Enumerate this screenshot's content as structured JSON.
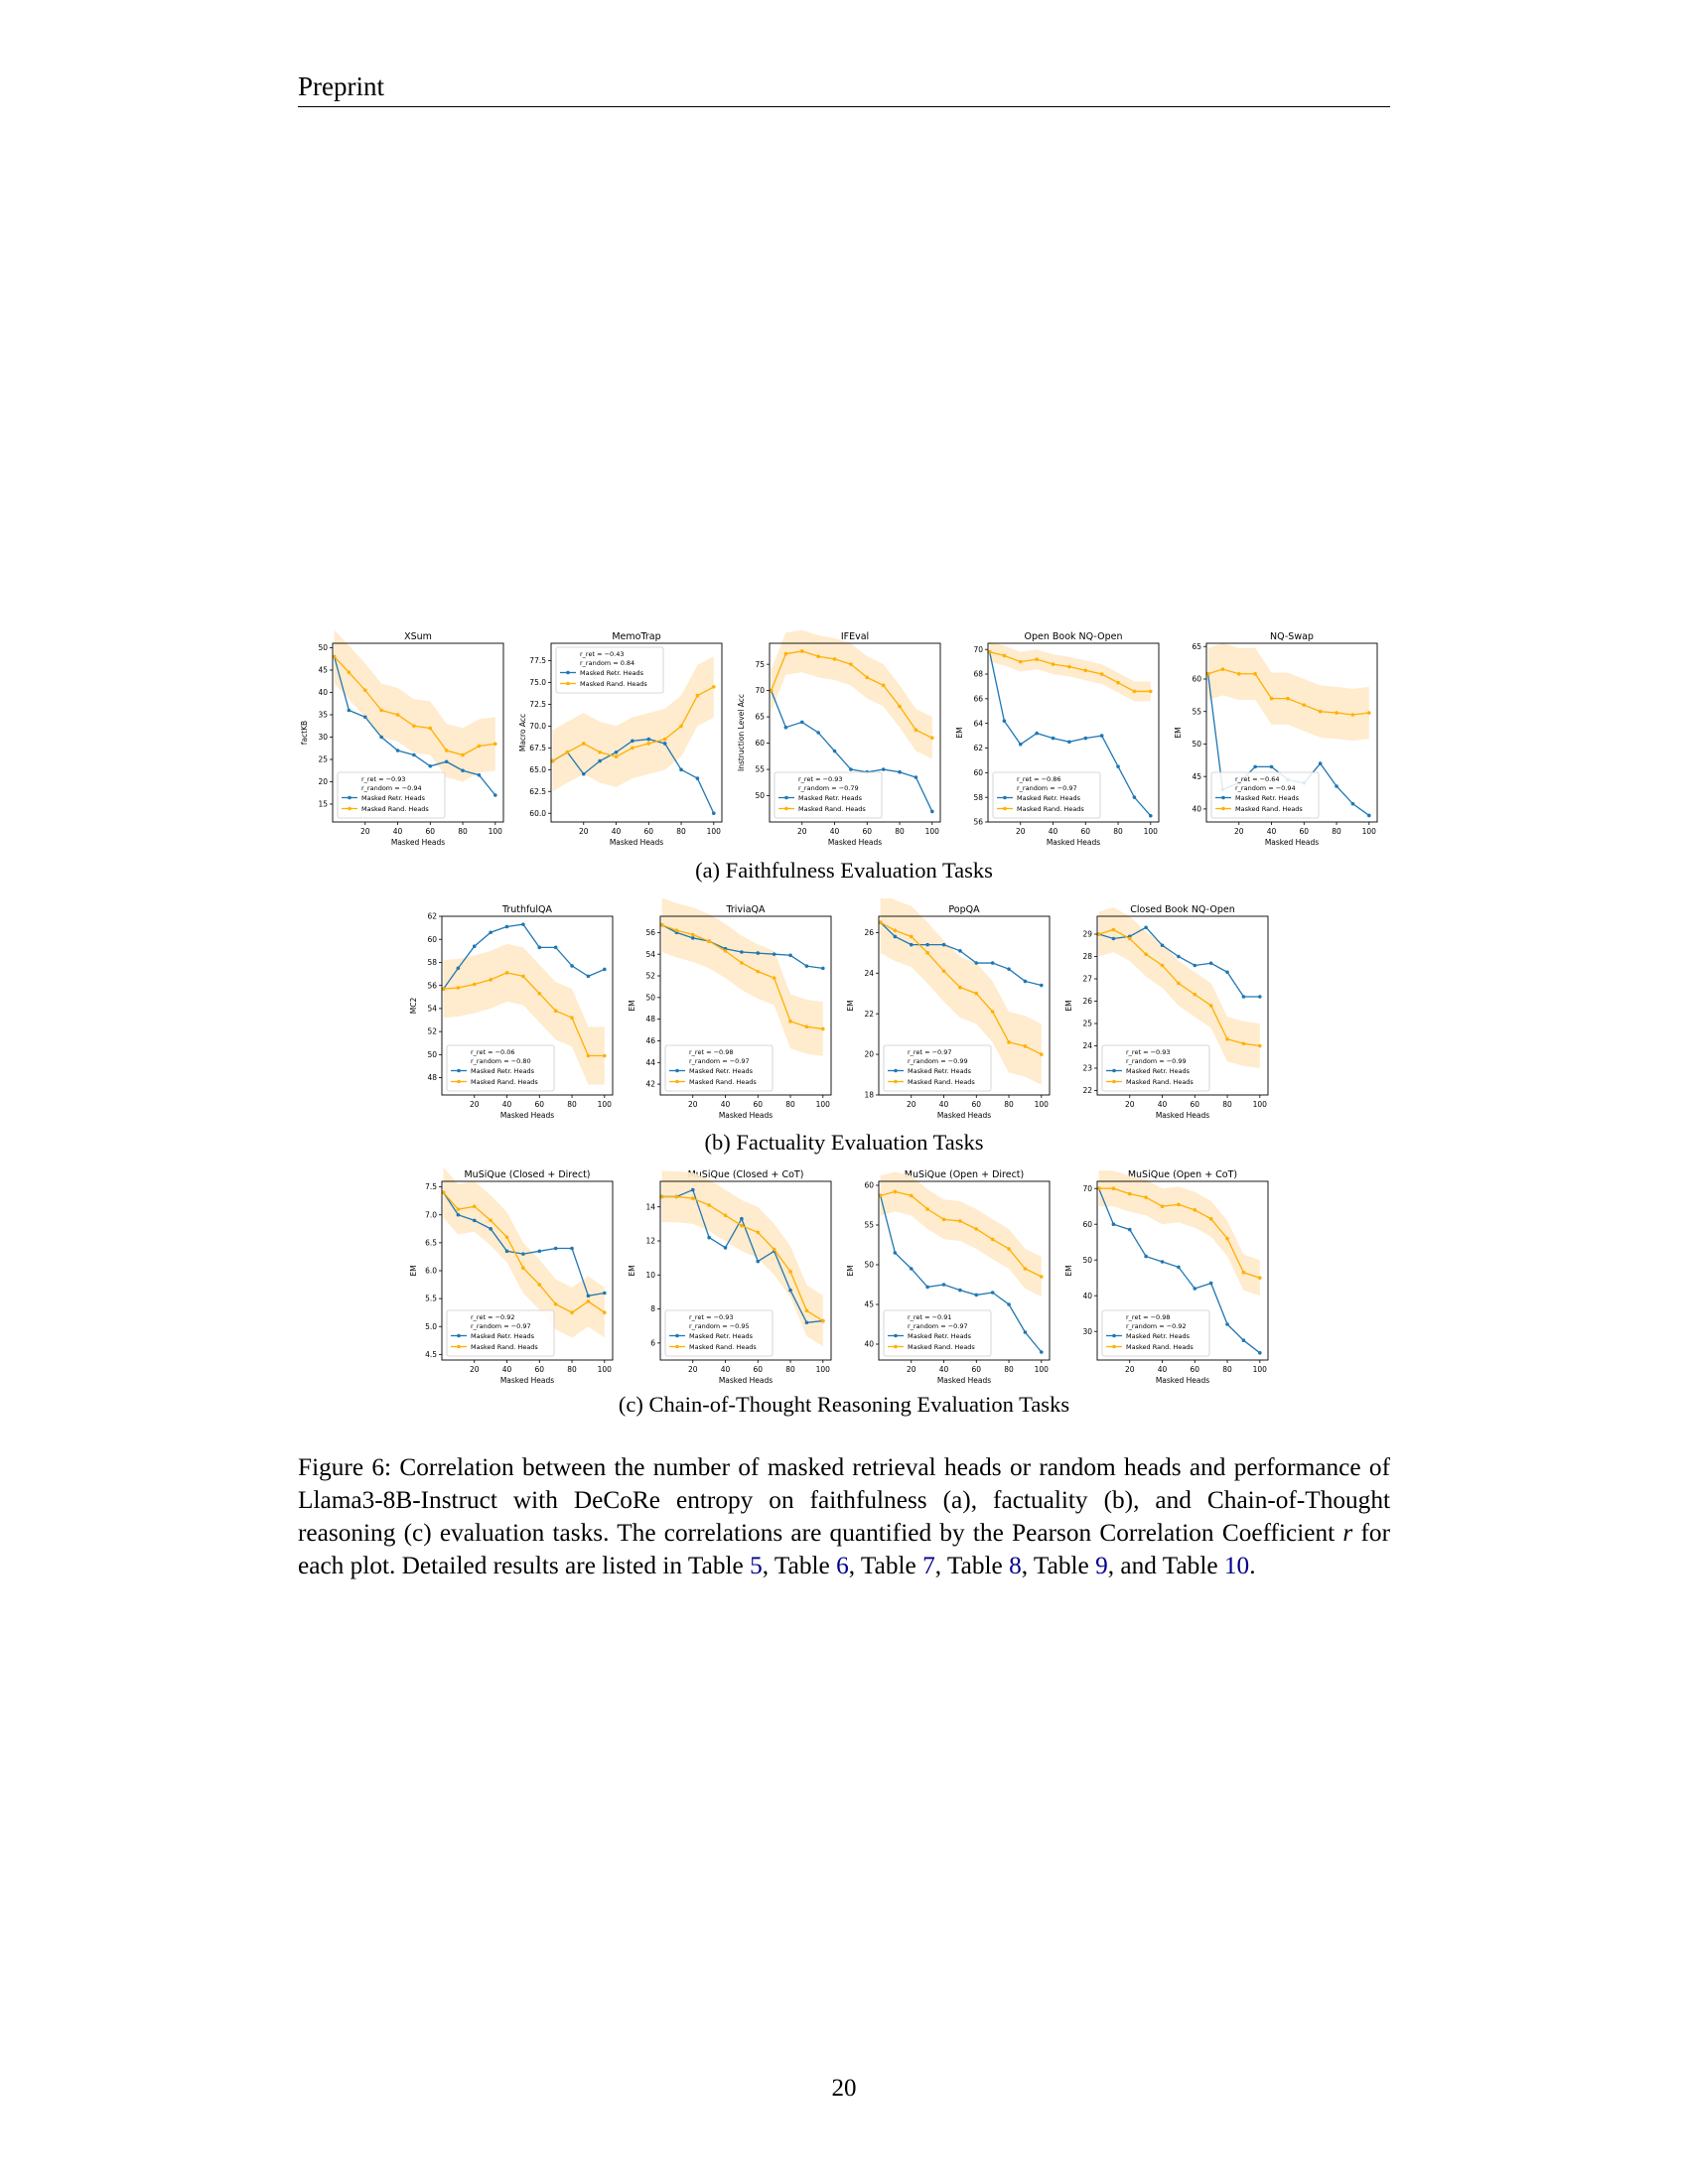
{
  "header": {
    "title": "Preprint"
  },
  "page_number": "20",
  "legend_labels": {
    "retr": "Masked Retr. Heads",
    "rand": "Masked Rand. Heads"
  },
  "colors": {
    "retr": "#1f77b4",
    "rand": "#ffb000",
    "band": "#ffe9c8"
  },
  "subcaptions": {
    "a": "(a) Faithfulness Evaluation Tasks",
    "b": "(b) Factuality Evaluation Tasks",
    "c": "(c) Chain-of-Thought Reasoning Evaluation Tasks"
  },
  "caption": {
    "part1": "Figure 6: Correlation between the number of masked retrieval heads or random heads and performance of Llama3-8B-Instruct with DeCoRe entropy on faithfulness (a), factuality (b), and Chain-of-Thought reasoning (c) evaluation tasks. The correlations are quantified by the Pearson Correlation Coefficient ",
    "var": "r",
    "part2": " for each plot. Detailed results are listed in Table ",
    "ref5": "5",
    "sep1": ", Table ",
    "ref6": "6",
    "sep2": ", Table ",
    "ref7": "7",
    "sep3": ", Table ",
    "ref8": "8",
    "sep4": ", Table ",
    "ref9": "9",
    "sep5": ", and Table ",
    "ref10": "10",
    "end": "."
  },
  "chart_data": [
    {
      "type": "line",
      "title": "XSum",
      "xlabel": "Masked Heads",
      "ylabel": "factKB",
      "xlim": [
        0,
        105
      ],
      "ylim": [
        11,
        51
      ],
      "xticks": [
        20,
        40,
        60,
        80,
        100
      ],
      "yticks": [
        15,
        20,
        25,
        30,
        35,
        40,
        45,
        50
      ],
      "x": [
        1,
        10,
        20,
        30,
        40,
        50,
        60,
        70,
        80,
        90,
        100
      ],
      "series": [
        {
          "name": "Masked Retr. Heads",
          "values": [
            48,
            36,
            34.5,
            30,
            27,
            26,
            23.5,
            24.5,
            22.5,
            21.5,
            17
          ]
        },
        {
          "name": "Masked Rand. Heads",
          "values": [
            48,
            44.5,
            40.5,
            36,
            35,
            32.5,
            32,
            27,
            26,
            28,
            28.5
          ],
          "band": 6
        }
      ],
      "corr": [
        "r_ret = −0.93",
        "r_random = −0.94"
      ],
      "legend": "lower-left"
    },
    {
      "type": "line",
      "title": "MemoTrap",
      "xlabel": "Masked Heads",
      "ylabel": "Macro Acc",
      "xlim": [
        0,
        105
      ],
      "ylim": [
        59,
        79.5
      ],
      "xticks": [
        20,
        40,
        60,
        80,
        100
      ],
      "yticks": [
        60.0,
        62.5,
        65.0,
        67.5,
        70.0,
        72.5,
        75.0,
        77.5
      ],
      "x": [
        1,
        10,
        20,
        30,
        40,
        50,
        60,
        70,
        80,
        90,
        100
      ],
      "series": [
        {
          "name": "Masked Retr. Heads",
          "values": [
            66,
            67,
            64.5,
            66,
            67,
            68.3,
            68.5,
            68,
            65,
            64,
            60
          ]
        },
        {
          "name": "Masked Rand. Heads",
          "values": [
            66,
            67,
            68,
            67,
            66.5,
            67.5,
            68,
            68.5,
            70,
            73.5,
            74.5
          ],
          "band": 3.5
        }
      ],
      "corr": [
        "r_ret = −0.43",
        "r_random = 0.84"
      ],
      "legend": "upper-left"
    },
    {
      "type": "line",
      "title": "IFEval",
      "xlabel": "Masked Heads",
      "ylabel": "Instruction Level Acc",
      "xlim": [
        0,
        105
      ],
      "ylim": [
        45,
        79
      ],
      "xticks": [
        20,
        40,
        60,
        80,
        100
      ],
      "yticks": [
        50,
        55,
        60,
        65,
        70,
        75
      ],
      "x": [
        1,
        10,
        20,
        30,
        40,
        50,
        60,
        70,
        80,
        90,
        100
      ],
      "series": [
        {
          "name": "Masked Retr. Heads",
          "values": [
            70,
            63,
            64,
            62,
            58.5,
            55,
            54.5,
            55,
            54.5,
            53.5,
            47
          ]
        },
        {
          "name": "Masked Rand. Heads",
          "values": [
            70,
            77,
            77.5,
            76.5,
            76,
            75,
            72.5,
            71,
            67,
            62.5,
            61
          ],
          "band": 4
        }
      ],
      "corr": [
        "r_ret = −0.93",
        "r_random = −0.79"
      ],
      "legend": "lower-left"
    },
    {
      "type": "line",
      "title": "Open Book NQ-Open",
      "xlabel": "Masked Heads",
      "ylabel": "EM",
      "xlim": [
        0,
        105
      ],
      "ylim": [
        56,
        70.5
      ],
      "xticks": [
        20,
        40,
        60,
        80,
        100
      ],
      "yticks": [
        56,
        58,
        60,
        62,
        64,
        66,
        68,
        70
      ],
      "x": [
        1,
        10,
        20,
        30,
        40,
        50,
        60,
        70,
        80,
        90,
        100
      ],
      "series": [
        {
          "name": "Masked Retr. Heads",
          "values": [
            69.8,
            64.2,
            62.3,
            63.2,
            62.8,
            62.5,
            62.8,
            63,
            60.5,
            58,
            56.5
          ]
        },
        {
          "name": "Masked Rand. Heads",
          "values": [
            69.8,
            69.5,
            69,
            69.2,
            68.8,
            68.6,
            68.3,
            68,
            67.3,
            66.6,
            66.6
          ],
          "band": 0.8
        }
      ],
      "corr": [
        "r_ret = −0.86",
        "r_random = −0.97"
      ],
      "legend": "lower-left"
    },
    {
      "type": "line",
      "title": "NQ-Swap",
      "xlabel": "Masked Heads",
      "ylabel": "EM",
      "xlim": [
        0,
        105
      ],
      "ylim": [
        38,
        65.5
      ],
      "xticks": [
        20,
        40,
        60,
        80,
        100
      ],
      "yticks": [
        40,
        45,
        50,
        55,
        60,
        65
      ],
      "x": [
        1,
        10,
        20,
        30,
        40,
        50,
        60,
        70,
        80,
        90,
        100
      ],
      "series": [
        {
          "name": "Masked Retr. Heads",
          "values": [
            60.8,
            43,
            44,
            46.5,
            46.5,
            44.5,
            44,
            47,
            43.5,
            40.8,
            39
          ]
        },
        {
          "name": "Masked Rand. Heads",
          "values": [
            60.8,
            61.5,
            60.8,
            60.8,
            57,
            57,
            56,
            55,
            54.8,
            54.5,
            54.8
          ],
          "band": 4
        }
      ],
      "corr": [
        "r_ret = −0.64",
        "r_random = −0.94"
      ],
      "legend": "lower-left"
    },
    {
      "type": "line",
      "title": "TruthfulQA",
      "xlabel": "Masked Heads",
      "ylabel": "MC2",
      "xlim": [
        0,
        105
      ],
      "ylim": [
        46.5,
        62
      ],
      "xticks": [
        20,
        40,
        60,
        80,
        100
      ],
      "yticks": [
        48,
        50,
        52,
        54,
        56,
        58,
        60,
        62
      ],
      "x": [
        1,
        10,
        20,
        30,
        40,
        50,
        60,
        70,
        80,
        90,
        100
      ],
      "series": [
        {
          "name": "Masked Retr. Heads",
          "values": [
            55.7,
            57.5,
            59.4,
            60.6,
            61.1,
            61.3,
            59.3,
            59.3,
            57.7,
            56.8,
            57.4
          ]
        },
        {
          "name": "Masked Rand. Heads",
          "values": [
            55.7,
            55.8,
            56.1,
            56.5,
            57.1,
            56.8,
            55.3,
            53.8,
            53.2,
            49.9,
            49.9
          ],
          "band": 2.5
        }
      ],
      "corr": [
        "r_ret = −0.06",
        "r_random = −0.80"
      ],
      "legend": "lower-left"
    },
    {
      "type": "line",
      "title": "TriviaQA",
      "xlabel": "Masked Heads",
      "ylabel": "EM",
      "xlim": [
        0,
        105
      ],
      "ylim": [
        41,
        57.5
      ],
      "xticks": [
        20,
        40,
        60,
        80,
        100
      ],
      "yticks": [
        42,
        44,
        46,
        48,
        50,
        52,
        54,
        56
      ],
      "x": [
        1,
        10,
        20,
        30,
        40,
        50,
        60,
        70,
        80,
        90,
        100
      ],
      "series": [
        {
          "name": "Masked Retr. Heads",
          "values": [
            56.7,
            56,
            55.5,
            55.2,
            54.5,
            54.2,
            54.1,
            54,
            53.9,
            52.9,
            52.7
          ]
        },
        {
          "name": "Masked Rand. Heads",
          "values": [
            56.7,
            56.2,
            55.8,
            55.2,
            54.3,
            53.2,
            52.4,
            51.8,
            47.8,
            47.3,
            47.1
          ],
          "band": 2.5
        }
      ],
      "corr": [
        "r_ret = −0.98",
        "r_random = −0.97"
      ],
      "legend": "lower-left"
    },
    {
      "type": "line",
      "title": "PopQA",
      "xlabel": "Masked Heads",
      "ylabel": "EM",
      "xlim": [
        0,
        105
      ],
      "ylim": [
        18,
        26.8
      ],
      "xticks": [
        20,
        40,
        60,
        80,
        100
      ],
      "yticks": [
        18,
        20,
        22,
        24,
        26
      ],
      "x": [
        1,
        10,
        20,
        30,
        40,
        50,
        60,
        70,
        80,
        90,
        100
      ],
      "series": [
        {
          "name": "Masked Retr. Heads",
          "values": [
            26.5,
            25.8,
            25.4,
            25.4,
            25.4,
            25.1,
            24.5,
            24.5,
            24.2,
            23.6,
            23.4
          ]
        },
        {
          "name": "Masked Rand. Heads",
          "values": [
            26.5,
            26.1,
            25.8,
            25,
            24.1,
            23.3,
            23,
            22.1,
            20.6,
            20.4,
            20
          ]
        },
        {
          "band": 1.5
        }
      ],
      "corr": [
        "r_ret = −0.97",
        "r_random = −0.99"
      ],
      "legend": "lower-left"
    },
    {
      "type": "line",
      "title": "Closed Book NQ-Open",
      "xlabel": "Masked Heads",
      "ylabel": "EM",
      "xlim": [
        0,
        105
      ],
      "ylim": [
        21.8,
        29.8
      ],
      "xticks": [
        20,
        40,
        60,
        80,
        100
      ],
      "yticks": [
        22,
        23,
        24,
        25,
        26,
        27,
        28,
        29
      ],
      "x": [
        1,
        10,
        20,
        30,
        40,
        50,
        60,
        70,
        80,
        90,
        100
      ],
      "series": [
        {
          "name": "Masked Retr. Heads",
          "values": [
            29,
            28.8,
            28.9,
            29.3,
            28.5,
            28,
            27.6,
            27.7,
            27.3,
            26.2,
            26.2
          ]
        },
        {
          "name": "Masked Rand. Heads",
          "values": [
            29,
            29.2,
            28.8,
            28.1,
            27.6,
            26.8,
            26.3,
            25.8,
            24.3,
            24.1,
            24
          ],
          "band": 1
        }
      ],
      "corr": [
        "r_ret = −0.93",
        "r_random = −0.99"
      ],
      "legend": "lower-left"
    },
    {
      "type": "line",
      "title": "MuSiQue (Closed + Direct)",
      "xlabel": "Masked Heads",
      "ylabel": "EM",
      "xlim": [
        0,
        105
      ],
      "ylim": [
        4.4,
        7.6
      ],
      "xticks": [
        20,
        40,
        60,
        80,
        100
      ],
      "yticks": [
        4.5,
        5.0,
        5.5,
        6.0,
        6.5,
        7.0,
        7.5
      ],
      "x": [
        1,
        10,
        20,
        30,
        40,
        50,
        60,
        70,
        80,
        90,
        100
      ],
      "series": [
        {
          "name": "Masked Retr. Heads",
          "values": [
            7.4,
            7,
            6.9,
            6.75,
            6.35,
            6.3,
            6.35,
            6.4,
            6.4,
            5.55,
            5.6
          ]
        },
        {
          "name": "Masked Rand. Heads",
          "values": [
            7.4,
            7.1,
            7.15,
            6.9,
            6.6,
            6.05,
            5.75,
            5.4,
            5.25,
            5.45,
            5.25
          ],
          "band": 0.45
        }
      ],
      "corr": [
        "r_ret = −0.92",
        "r_random = −0.97"
      ],
      "legend": "lower-left"
    },
    {
      "type": "line",
      "title": "MuSiQue (Closed + CoT)",
      "xlabel": "Masked Heads",
      "ylabel": "EM",
      "xlim": [
        0,
        105
      ],
      "ylim": [
        5,
        15.5
      ],
      "xticks": [
        20,
        40,
        60,
        80,
        100
      ],
      "yticks": [
        6,
        8,
        10,
        12,
        14
      ],
      "x": [
        1,
        10,
        20,
        30,
        40,
        50,
        60,
        70,
        80,
        90,
        100
      ],
      "series": [
        {
          "name": "Masked Retr. Heads",
          "values": [
            14.6,
            14.6,
            15,
            12.2,
            11.6,
            13.3,
            10.8,
            11.4,
            9.1,
            7.2,
            7.3
          ]
        },
        {
          "name": "Masked Rand. Heads",
          "values": [
            14.6,
            14.6,
            14.5,
            14.1,
            13.5,
            12.9,
            12.5,
            11.5,
            10.2,
            7.9,
            7.3
          ],
          "band": 1.5
        }
      ],
      "corr": [
        "r_ret = −0.93",
        "r_random = −0.95"
      ],
      "legend": "lower-left"
    },
    {
      "type": "line",
      "title": "MuSiQue (Open + Direct)",
      "xlabel": "Masked Heads",
      "ylabel": "EM",
      "xlim": [
        0,
        105
      ],
      "ylim": [
        38,
        60.5
      ],
      "xticks": [
        20,
        40,
        60,
        80,
        100
      ],
      "yticks": [
        40,
        45,
        50,
        55,
        60
      ],
      "x": [
        1,
        10,
        20,
        30,
        40,
        50,
        60,
        70,
        80,
        90,
        100
      ],
      "series": [
        {
          "name": "Masked Retr. Heads",
          "values": [
            58.7,
            51.5,
            49.5,
            47.2,
            47.5,
            46.8,
            46.2,
            46.5,
            45,
            41.5,
            39
          ]
        },
        {
          "name": "Masked Rand. Heads",
          "values": [
            58.7,
            59.2,
            58.7,
            57,
            55.7,
            55.5,
            54.5,
            53.2,
            52,
            49.5,
            48.5
          ],
          "band": 2.5
        }
      ],
      "corr": [
        "r_ret = −0.91",
        "r_random = −0.97"
      ],
      "legend": "lower-left"
    },
    {
      "type": "line",
      "title": "MuSiQue (Open + CoT)",
      "xlabel": "Masked Heads",
      "ylabel": "EM",
      "xlim": [
        0,
        105
      ],
      "ylim": [
        22,
        72
      ],
      "xticks": [
        20,
        40,
        60,
        80,
        100
      ],
      "yticks": [
        30,
        40,
        50,
        60,
        70
      ],
      "x": [
        1,
        10,
        20,
        30,
        40,
        50,
        60,
        70,
        80,
        90,
        100
      ],
      "series": [
        {
          "name": "Masked Retr. Heads",
          "values": [
            70,
            60,
            58.5,
            51,
            49.5,
            48,
            42,
            43.5,
            32,
            27.5,
            24
          ]
        },
        {
          "name": "Masked Rand. Heads",
          "values": [
            70,
            70,
            68.5,
            67.5,
            65,
            65.5,
            64,
            61.5,
            56,
            46.5,
            45
          ],
          "band": 5
        }
      ],
      "corr": [
        "r_ret = −0.98",
        "r_random = −0.92"
      ],
      "legend": "lower-left"
    }
  ]
}
